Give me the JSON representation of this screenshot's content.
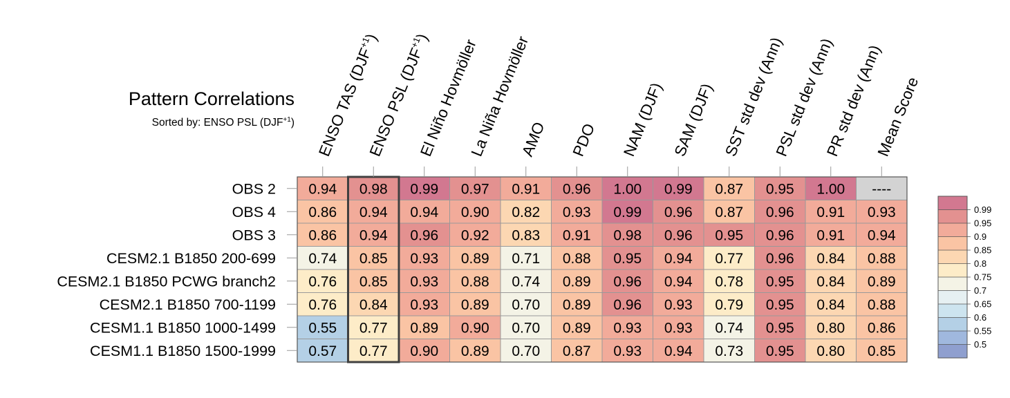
{
  "title": "Pattern Correlations",
  "subtitle": {
    "prefix": "Sorted by: ENSO PSL (DJF",
    "sup": "+1",
    "suffix": ")"
  },
  "chart_data": {
    "type": "heatmap",
    "title": "Pattern Correlations",
    "columns": [
      {
        "label": "ENSO TAS (DJF",
        "sup": "+1",
        "suffix": ")"
      },
      {
        "label": "ENSO PSL (DJF",
        "sup": "+1",
        "suffix": ")"
      },
      {
        "label": "El Niño Hovmöller"
      },
      {
        "label": "La Niña Hovmöller"
      },
      {
        "label": "AMO"
      },
      {
        "label": "PDO"
      },
      {
        "label": "NAM (DJF)"
      },
      {
        "label": "SAM (DJF)"
      },
      {
        "label": "SST std dev (Ann)"
      },
      {
        "label": "PSL std dev (Ann)"
      },
      {
        "label": "PR std dev (Ann)"
      },
      {
        "label": "Mean Score"
      }
    ],
    "rows": [
      {
        "label": "OBS 2",
        "values": [
          "0.94",
          "0.98",
          "0.99",
          "0.97",
          "0.91",
          "0.96",
          "1.00",
          "0.99",
          "0.87",
          "0.95",
          "1.00",
          "----"
        ]
      },
      {
        "label": "OBS 4",
        "values": [
          "0.86",
          "0.94",
          "0.94",
          "0.90",
          "0.82",
          "0.93",
          "0.99",
          "0.96",
          "0.87",
          "0.96",
          "0.91",
          "0.93"
        ]
      },
      {
        "label": "OBS 3",
        "values": [
          "0.86",
          "0.94",
          "0.96",
          "0.92",
          "0.83",
          "0.91",
          "0.98",
          "0.96",
          "0.95",
          "0.96",
          "0.91",
          "0.94"
        ]
      },
      {
        "label": "CESM2.1 B1850 200-699",
        "values": [
          "0.74",
          "0.85",
          "0.93",
          "0.89",
          "0.71",
          "0.88",
          "0.95",
          "0.94",
          "0.77",
          "0.96",
          "0.84",
          "0.88"
        ]
      },
      {
        "label": "CESM2.1 B1850 PCWG branch2",
        "values": [
          "0.76",
          "0.85",
          "0.93",
          "0.88",
          "0.74",
          "0.89",
          "0.96",
          "0.94",
          "0.78",
          "0.95",
          "0.84",
          "0.89"
        ]
      },
      {
        "label": "CESM2.1 B1850 700-1199",
        "values": [
          "0.76",
          "0.84",
          "0.93",
          "0.89",
          "0.70",
          "0.89",
          "0.96",
          "0.93",
          "0.79",
          "0.95",
          "0.84",
          "0.88"
        ]
      },
      {
        "label": "CESM1.1 B1850 1000-1499",
        "values": [
          "0.55",
          "0.77",
          "0.89",
          "0.90",
          "0.70",
          "0.89",
          "0.93",
          "0.93",
          "0.74",
          "0.95",
          "0.80",
          "0.86"
        ]
      },
      {
        "label": "CESM1.1 B1850 1500-1999",
        "values": [
          "0.57",
          "0.77",
          "0.90",
          "0.89",
          "0.70",
          "0.87",
          "0.93",
          "0.94",
          "0.73",
          "0.95",
          "0.80",
          "0.85"
        ]
      }
    ],
    "highlighted_column": 1,
    "missing_color": "#d3d3d3",
    "colorbar": {
      "labels": [
        "0.99",
        "0.95",
        "0.9",
        "0.85",
        "0.8",
        "0.75",
        "0.7",
        "0.65",
        "0.6",
        "0.55",
        "0.5"
      ],
      "thresholds": [
        0.99,
        0.95,
        0.9,
        0.85,
        0.8,
        0.75,
        0.7,
        0.65,
        0.6,
        0.55,
        0.5
      ],
      "colors": [
        "#d27890",
        "#e39190",
        "#f2ab9a",
        "#fac4a4",
        "#fcd7b2",
        "#fdecc8",
        "#f4f3e6",
        "#e6f0f2",
        "#cde4ef",
        "#b4d0e6",
        "#a0b8de",
        "#8f9fcf"
      ]
    }
  }
}
